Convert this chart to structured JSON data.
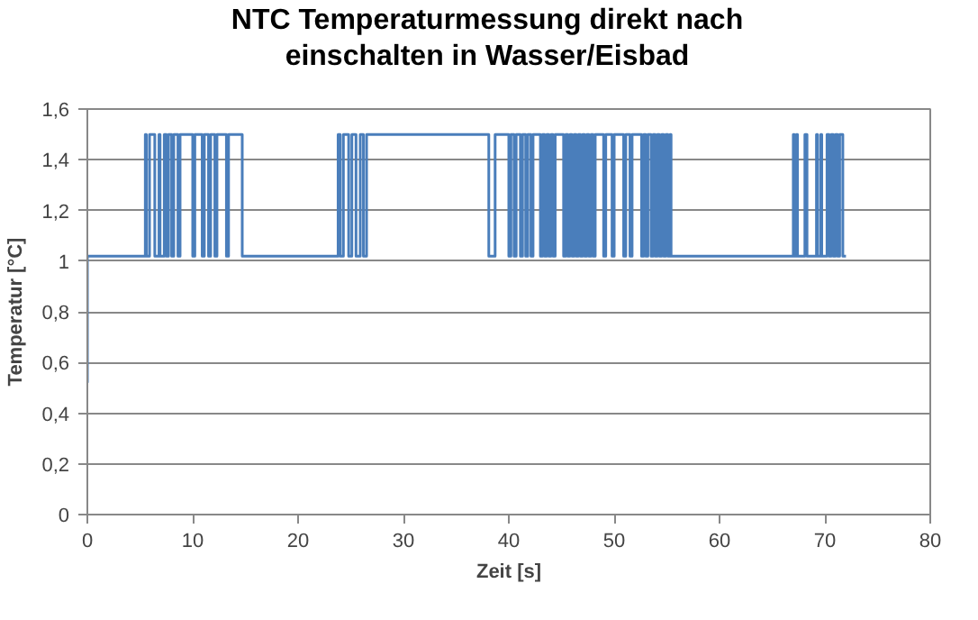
{
  "chart_data": {
    "type": "step",
    "title": "NTC Temperaturmessung direkt nach einschalten in Wasser/Eisbad",
    "xlabel": "Zeit [s]",
    "ylabel": "Temperatur [°C]",
    "x": [
      0,
      0,
      5.5,
      5.6,
      5.9,
      6.4,
      6.8,
      6.9,
      7.3,
      7.5,
      7.7,
      8.0,
      8.2,
      8.6,
      8.8,
      10.0,
      10.2,
      10.9,
      11.1,
      11.5,
      11.7,
      12.1,
      12.3,
      13.2,
      13.4,
      14.7,
      23.8,
      24.0,
      24.3,
      24.8,
      25.1,
      25.5,
      25.9,
      26.2,
      26.5,
      38.1,
      38.7,
      40.0,
      40.2,
      40.5,
      40.7,
      41.1,
      41.3,
      41.6,
      41.8,
      42.1,
      42.3,
      43.0,
      43.2,
      43.4,
      43.6,
      43.8,
      44.0,
      44.2,
      44.4,
      45.2,
      45.4,
      45.6,
      45.8,
      46.0,
      46.2,
      46.4,
      46.6,
      46.8,
      47.0,
      47.2,
      47.4,
      47.6,
      47.8,
      48.0,
      48.2,
      49.0,
      49.2,
      49.8,
      50.0,
      50.9,
      51.1,
      51.5,
      51.7,
      52.6,
      52.8,
      53.0,
      53.2,
      53.5,
      53.7,
      53.9,
      54.1,
      54.3,
      54.5,
      54.7,
      54.9,
      55.1,
      55.3,
      55.4,
      67.0,
      67.1,
      67.3,
      67.4,
      68.1,
      68.3,
      69.2,
      69.3,
      69.6,
      69.7,
      70.2,
      70.4,
      70.6,
      70.8,
      71.0,
      71.2,
      71.4,
      71.7,
      72
    ],
    "series": [
      {
        "color": "#4a7ebb",
        "values": [
          0.52,
          1.02,
          1.5,
          1.02,
          1.5,
          1.02,
          1.5,
          1.02,
          1.5,
          1.02,
          1.5,
          1.02,
          1.5,
          1.02,
          1.5,
          1.02,
          1.5,
          1.02,
          1.5,
          1.02,
          1.5,
          1.02,
          1.5,
          1.02,
          1.5,
          1.02,
          1.5,
          1.02,
          1.5,
          1.02,
          1.5,
          1.02,
          1.5,
          1.02,
          1.5,
          1.02,
          1.5,
          1.02,
          1.5,
          1.02,
          1.5,
          1.02,
          1.5,
          1.02,
          1.5,
          1.02,
          1.5,
          1.02,
          1.5,
          1.02,
          1.5,
          1.02,
          1.5,
          1.02,
          1.5,
          1.02,
          1.5,
          1.02,
          1.5,
          1.02,
          1.5,
          1.02,
          1.5,
          1.02,
          1.5,
          1.02,
          1.5,
          1.02,
          1.5,
          1.02,
          1.5,
          1.02,
          1.5,
          1.02,
          1.5,
          1.02,
          1.5,
          1.02,
          1.5,
          1.02,
          1.5,
          1.02,
          1.5,
          1.02,
          1.5,
          1.02,
          1.5,
          1.02,
          1.5,
          1.02,
          1.5,
          1.02,
          1.5,
          1.02,
          1.5,
          1.02,
          1.5,
          1.02,
          1.5,
          1.02,
          1.5,
          1.02,
          1.5,
          1.02,
          1.5,
          1.02,
          1.5,
          1.02,
          1.5,
          1.02,
          1.5,
          1.02,
          1.02
        ]
      }
    ],
    "xlim": [
      0,
      80
    ],
    "xticks": [
      0,
      10,
      20,
      30,
      40,
      50,
      60,
      70,
      80
    ],
    "ylim": [
      0,
      1.6
    ],
    "yticks": [
      0,
      {
        "value": 0.2,
        "label": "0,2"
      },
      {
        "value": 0.4,
        "label": "0,4"
      },
      {
        "value": 0.6,
        "label": "0,6"
      },
      {
        "value": 0.8,
        "label": "0,8"
      },
      1,
      {
        "value": 1.2,
        "label": "1,2"
      },
      {
        "value": 1.4,
        "label": "1,4"
      },
      {
        "value": 1.6,
        "label": "1,6"
      }
    ],
    "grid": "y",
    "marker": "none",
    "line_style": "solid"
  }
}
